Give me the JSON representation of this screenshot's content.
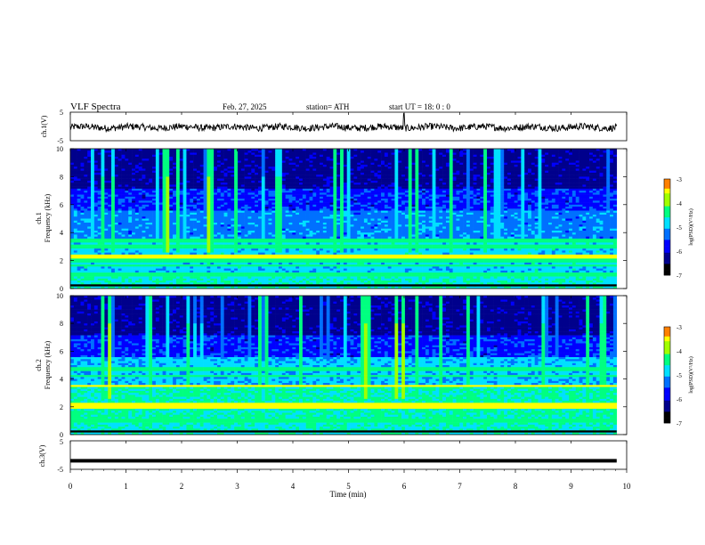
{
  "header": {
    "title": "VLF  Spectra",
    "date": "Feb. 27, 2025",
    "station": "station= ATH",
    "start": "start  UT  =    18: 0   : 0"
  },
  "chart_data": [
    {
      "type": "line",
      "panel": "ch1-waveform",
      "ylabel": "ch.1(V)",
      "ylim": [
        -5,
        5
      ],
      "yticks": [
        "5",
        "-5"
      ],
      "xlim": [
        0,
        10
      ],
      "description_values": {
        "baseline_v": -0.3,
        "noise_amplitude_v": 1.2,
        "spike_time_min": 6.0
      }
    },
    {
      "type": "heatmap",
      "panel": "ch1-spectrogram",
      "ylabel": "ch.1\nFrequency (kHz)",
      "ylabel_line1": "ch.1",
      "ylabel_line2": "Frequency (kHz)",
      "ylim": [
        0,
        10
      ],
      "yticks": [
        "0",
        "2",
        "4",
        "6",
        "8",
        "10"
      ],
      "xlim": [
        0,
        9.82
      ],
      "colorbar": {
        "label": "log(PSD)(V²/Hz)",
        "range": [
          -7,
          -3
        ],
        "ticks": [
          "-3",
          "-4",
          "-5",
          "-6",
          "-7"
        ]
      },
      "persistent_lines_khz": [
        1.0,
        1.6,
        2.0,
        2.3,
        3.0,
        3.3,
        3.5
      ],
      "strong_lines_khz": [
        2.2,
        2.3
      ]
    },
    {
      "type": "heatmap",
      "panel": "ch2-spectrogram",
      "ylabel_line1": "ch.2",
      "ylabel_line2": "Frequency (kHz)",
      "ylim": [
        0,
        10
      ],
      "yticks": [
        "0",
        "2",
        "4",
        "6",
        "8",
        "10"
      ],
      "xlim": [
        0,
        9.82
      ],
      "colorbar": {
        "label": "log(PSD)(V²/Hz)",
        "range": [
          -7,
          -3
        ],
        "ticks": [
          "-3",
          "-4",
          "-5",
          "-6",
          "-7"
        ]
      },
      "persistent_lines_khz": [
        1.0,
        2.0,
        2.2,
        3.5,
        4.2,
        4.7
      ],
      "strong_lines_khz": [
        2.0,
        2.2,
        3.5
      ]
    },
    {
      "type": "line",
      "panel": "ch3-waveform",
      "ylabel": "ch.3(V)",
      "ylim": [
        -5,
        5
      ],
      "yticks": [
        "5",
        "-5"
      ],
      "xlim": [
        0,
        10
      ],
      "description_values": {
        "constant_level_v": -2.0
      }
    }
  ],
  "xaxis": {
    "label": "Time  (min)",
    "ticks": [
      "0",
      "1",
      "2",
      "3",
      "4",
      "5",
      "6",
      "7",
      "8",
      "9",
      "10"
    ]
  },
  "colors": {
    "colormap": [
      "#000000",
      "#00008c",
      "#0000ff",
      "#0070ff",
      "#00e0ff",
      "#00ff80",
      "#a0ff00",
      "#ffff00",
      "#ff8000",
      "#ff0000",
      "#ffffff"
    ]
  }
}
